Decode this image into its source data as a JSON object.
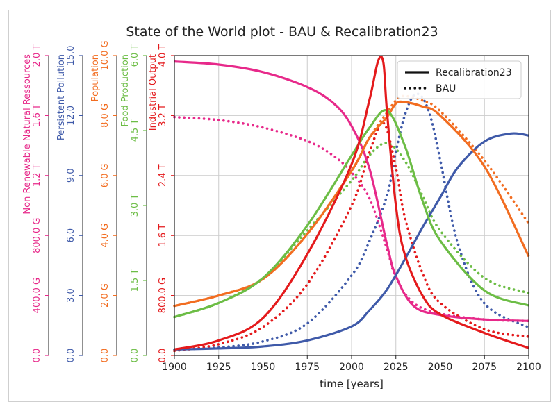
{
  "chart_data": {
    "type": "line",
    "title": "State of the World plot - BAU & Recalibration23",
    "xlabel": "time [years]",
    "xlim": [
      1900,
      2100
    ],
    "xticks": [
      "1900",
      "1925",
      "1950",
      "1975",
      "2000",
      "2025",
      "2050",
      "2075",
      "2100"
    ],
    "grid": true,
    "legend_position": "top-right",
    "legend": [
      {
        "label": "Recalibration23",
        "style": "solid"
      },
      {
        "label": "BAU",
        "style": "dotted"
      }
    ],
    "axes": [
      {
        "id": "nrr",
        "label": "Non Renewable Natural Ressources",
        "color": "#e7298a",
        "ticks": [
          "0.0",
          "400.0 G",
          "800.0 G",
          "1.2 T",
          "1.6 T",
          "2.0 T"
        ],
        "max": 2.0
      },
      {
        "id": "pol",
        "label": "Persistent Pollution",
        "color": "#3f5aa9",
        "ticks": [
          "0.0",
          "3.0",
          "6.0",
          "9.0",
          "12.0",
          "15.0"
        ],
        "max": 15.0
      },
      {
        "id": "pop",
        "label": "Population",
        "color": "#f26d21",
        "ticks": [
          "0.0",
          "2.0 G",
          "4.0 G",
          "6.0 G",
          "8.0 G",
          "10.0 G"
        ],
        "max": 10.0
      },
      {
        "id": "food",
        "label": "Food Production",
        "color": "#6cbd45",
        "ticks": [
          "0.0",
          "1.5 T",
          "3.0 T",
          "4.5 T",
          "6.0 T"
        ],
        "max": 6.0
      },
      {
        "id": "io",
        "label": "Industrial Output",
        "color": "#e41a1c",
        "ticks": [
          "0.0",
          "800.0 G",
          "1.6 T",
          "2.4 T",
          "3.2 T",
          "4.0 T"
        ],
        "max": 4.0
      }
    ],
    "series": [
      {
        "axis": "nrr",
        "color": "#e7298a",
        "style": "solid",
        "x": [
          1900,
          1925,
          1950,
          1975,
          1990,
          2000,
          2010,
          2020,
          2025,
          2035,
          2050,
          2075,
          2100
        ],
        "y": [
          1.96,
          1.94,
          1.89,
          1.79,
          1.68,
          1.53,
          1.25,
          0.74,
          0.53,
          0.33,
          0.27,
          0.24,
          0.23
        ]
      },
      {
        "axis": "nrr",
        "color": "#e7298a",
        "style": "dotted",
        "x": [
          1900,
          1925,
          1950,
          1975,
          1990,
          2000,
          2010,
          2020,
          2025,
          2035,
          2050,
          2075,
          2100
        ],
        "y": [
          1.59,
          1.57,
          1.52,
          1.43,
          1.33,
          1.22,
          1.05,
          0.71,
          0.52,
          0.35,
          0.28,
          0.24,
          0.23
        ]
      },
      {
        "axis": "pol",
        "color": "#3f5aa9",
        "style": "solid",
        "x": [
          1900,
          1925,
          1950,
          1975,
          2000,
          2010,
          2020,
          2030,
          2040,
          2050,
          2060,
          2075,
          2090,
          2100
        ],
        "y": [
          0.3,
          0.35,
          0.45,
          0.75,
          1.45,
          2.25,
          3.3,
          4.8,
          6.4,
          7.9,
          9.4,
          10.7,
          11.1,
          11.0
        ]
      },
      {
        "axis": "pol",
        "color": "#3f5aa9",
        "style": "dotted",
        "x": [
          1900,
          1925,
          1950,
          1975,
          2000,
          2010,
          2020,
          2025,
          2030,
          2035,
          2040,
          2045,
          2050,
          2060,
          2075,
          2100
        ],
        "y": [
          0.3,
          0.4,
          0.7,
          1.6,
          4.0,
          5.7,
          8.0,
          10.2,
          12.0,
          13.0,
          12.9,
          11.8,
          9.8,
          5.6,
          2.6,
          1.4
        ]
      },
      {
        "axis": "pop",
        "color": "#f26d21",
        "style": "solid",
        "x": [
          1900,
          1925,
          1950,
          1975,
          2000,
          2010,
          2020,
          2025,
          2030,
          2040,
          2050,
          2075,
          2100
        ],
        "y": [
          1.65,
          2.0,
          2.55,
          4.05,
          6.15,
          7.25,
          7.95,
          8.4,
          8.45,
          8.3,
          8.0,
          6.3,
          3.3
        ]
      },
      {
        "axis": "pop",
        "color": "#f26d21",
        "style": "dotted",
        "x": [
          1900,
          1925,
          1950,
          1975,
          2000,
          2010,
          2020,
          2025,
          2030,
          2040,
          2050,
          2075,
          2100
        ],
        "y": [
          1.65,
          2.0,
          2.55,
          4.05,
          6.15,
          7.25,
          8.1,
          8.5,
          8.65,
          8.5,
          8.15,
          6.5,
          4.4
        ]
      },
      {
        "axis": "food",
        "color": "#6cbd45",
        "style": "solid",
        "x": [
          1900,
          1925,
          1950,
          1975,
          2000,
          2010,
          2020,
          2030,
          2040,
          2050,
          2075,
          2100
        ],
        "y": [
          0.77,
          1.05,
          1.55,
          2.6,
          4.0,
          4.55,
          4.9,
          4.2,
          3.1,
          2.3,
          1.3,
          1.0
        ]
      },
      {
        "axis": "food",
        "color": "#6cbd45",
        "style": "dotted",
        "x": [
          1900,
          1925,
          1950,
          1975,
          2000,
          2010,
          2020,
          2030,
          2040,
          2050,
          2075,
          2100
        ],
        "y": [
          0.77,
          1.05,
          1.55,
          2.5,
          3.5,
          4.0,
          4.25,
          3.9,
          3.2,
          2.5,
          1.55,
          1.25
        ]
      },
      {
        "axis": "io",
        "color": "#e41a1c",
        "style": "solid",
        "x": [
          1900,
          1925,
          1950,
          1975,
          2000,
          2010,
          2015,
          2018,
          2020,
          2025,
          2030,
          2040,
          2050,
          2075,
          2100
        ],
        "y": [
          0.08,
          0.2,
          0.5,
          1.35,
          2.55,
          3.4,
          3.93,
          3.9,
          3.25,
          2.0,
          1.35,
          0.8,
          0.55,
          0.3,
          0.1
        ]
      },
      {
        "axis": "io",
        "color": "#e41a1c",
        "style": "dotted",
        "x": [
          1900,
          1925,
          1950,
          1975,
          2000,
          2010,
          2018,
          2025,
          2030,
          2040,
          2050,
          2075,
          2100
        ],
        "y": [
          0.06,
          0.15,
          0.38,
          0.95,
          2.0,
          2.7,
          3.1,
          2.5,
          1.85,
          1.1,
          0.7,
          0.35,
          0.25
        ]
      }
    ]
  }
}
